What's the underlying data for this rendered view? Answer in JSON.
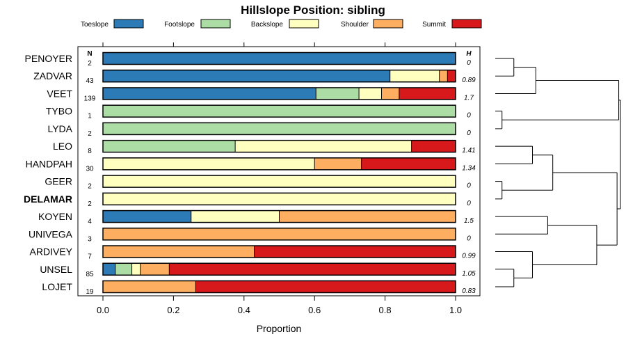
{
  "chart_data": {
    "type": "bar",
    "orientation": "horizontal-stacked-proportion",
    "title": "Hillslope Position: sibling",
    "xlabel": "Proportion",
    "xlim": [
      0,
      1
    ],
    "xticks": [
      0.0,
      0.2,
      0.4,
      0.6,
      0.8,
      1.0
    ],
    "xtick_labels": [
      "0.0",
      "0.2",
      "0.4",
      "0.6",
      "0.8",
      "1.0"
    ],
    "n_header": "N",
    "h_header": "H",
    "legend": [
      {
        "name": "Toeslope",
        "color": "#2c7bb6"
      },
      {
        "name": "Footslope",
        "color": "#abdda4"
      },
      {
        "name": "Backslope",
        "color": "#ffffbf"
      },
      {
        "name": "Shoulder",
        "color": "#fdae61"
      },
      {
        "name": "Summit",
        "color": "#d7191c"
      }
    ],
    "rows": [
      {
        "label": "PENOYER",
        "n": "2",
        "h": "0",
        "bold": false,
        "values": [
          1.0,
          0,
          0,
          0,
          0
        ]
      },
      {
        "label": "ZADVAR",
        "n": "43",
        "h": "0.89",
        "bold": false,
        "values": [
          0.814,
          0,
          0.14,
          0.023,
          0.023
        ]
      },
      {
        "label": "VEET",
        "n": "139",
        "h": "1.7",
        "bold": false,
        "values": [
          0.604,
          0.122,
          0.064,
          0.05,
          0.16
        ]
      },
      {
        "label": "TYBO",
        "n": "1",
        "h": "0",
        "bold": false,
        "values": [
          0,
          1.0,
          0,
          0,
          0
        ]
      },
      {
        "label": "LYDA",
        "n": "2",
        "h": "0",
        "bold": false,
        "values": [
          0,
          1.0,
          0,
          0,
          0
        ]
      },
      {
        "label": "LEO",
        "n": "8",
        "h": "1.41",
        "bold": false,
        "values": [
          0,
          0.375,
          0.5,
          0,
          0.125
        ]
      },
      {
        "label": "HANDPAH",
        "n": "30",
        "h": "1.34",
        "bold": false,
        "values": [
          0,
          0,
          0.6,
          0.133,
          0.267
        ]
      },
      {
        "label": "GEER",
        "n": "2",
        "h": "0",
        "bold": false,
        "values": [
          0,
          0,
          1.0,
          0,
          0
        ]
      },
      {
        "label": "DELAMAR",
        "n": "2",
        "h": "0",
        "bold": true,
        "values": [
          0,
          0,
          1.0,
          0,
          0
        ]
      },
      {
        "label": "KOYEN",
        "n": "4",
        "h": "1.5",
        "bold": false,
        "values": [
          0.25,
          0,
          0.25,
          0.5,
          0
        ]
      },
      {
        "label": "UNIVEGA",
        "n": "3",
        "h": "0",
        "bold": false,
        "values": [
          0,
          0,
          0,
          1.0,
          0
        ]
      },
      {
        "label": "ARDIVEY",
        "n": "7",
        "h": "0.99",
        "bold": false,
        "values": [
          0,
          0,
          0,
          0.429,
          0.571
        ]
      },
      {
        "label": "UNSEL",
        "n": "85",
        "h": "1.05",
        "bold": false,
        "values": [
          0.035,
          0.047,
          0.024,
          0.082,
          0.812
        ]
      },
      {
        "label": "LOJET",
        "n": "19",
        "h": "0.83",
        "bold": false,
        "values": [
          0,
          0,
          0,
          0.263,
          0.737
        ]
      }
    ],
    "dendrogram": {
      "leaf_order": [
        "PENOYER",
        "ZADVAR",
        "VEET",
        "TYBO",
        "LYDA",
        "LEO",
        "HANDPAH",
        "GEER",
        "DELAMAR",
        "KOYEN",
        "UNIVEGA",
        "ARDIVEY",
        "UNSEL",
        "LOJET"
      ],
      "merges": [
        {
          "a": "PENOYER",
          "b": "ZADVAR",
          "height": 0.11
        },
        {
          "a": "c1",
          "b": "VEET",
          "height": 0.24
        },
        {
          "a": "TYBO",
          "b": "LYDA",
          "height": 0.04
        },
        {
          "a": "c2",
          "b": "c3",
          "height": 0.73
        },
        {
          "a": "LEO",
          "b": "HANDPAH",
          "height": 0.22
        },
        {
          "a": "GEER",
          "b": "DELAMAR",
          "height": 0.04
        },
        {
          "a": "c5",
          "b": "c6",
          "height": 0.34
        },
        {
          "a": "KOYEN",
          "b": "UNIVEGA",
          "height": 0.31
        },
        {
          "a": "UNSEL",
          "b": "LOJET",
          "height": 0.11
        },
        {
          "a": "ARDIVEY",
          "b": "c9",
          "height": 0.22
        },
        {
          "a": "c8",
          "b": "c10",
          "height": 0.6
        },
        {
          "a": "c7",
          "b": "c11",
          "height": 0.72
        },
        {
          "a": "c4",
          "b": "c12",
          "height": 0.74
        }
      ]
    }
  }
}
